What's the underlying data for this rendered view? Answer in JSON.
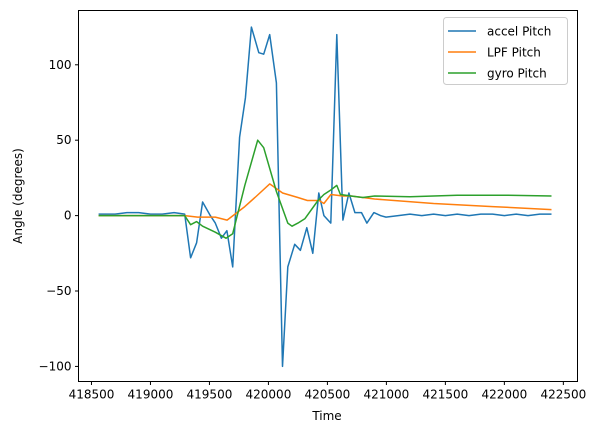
{
  "chart_data": {
    "type": "line",
    "title": "",
    "xlabel": "Time",
    "ylabel": "Angle (degrees)",
    "xlim": [
      418390,
      422620
    ],
    "ylim": [
      -110,
      136
    ],
    "xticks": [
      418500,
      419000,
      419500,
      420000,
      420500,
      421000,
      421500,
      422000,
      422500
    ],
    "yticks": [
      -100,
      -50,
      0,
      50,
      100
    ],
    "legend_position": "top-right",
    "grid": false,
    "series": [
      {
        "name": "accel Pitch",
        "color": "#1f77b4",
        "x": [
          418560,
          418700,
          418800,
          418900,
          419000,
          419100,
          419200,
          419290,
          419340,
          419391,
          419442,
          419507,
          419550,
          419601,
          419648,
          419697,
          419756,
          419805,
          419856,
          419918,
          419960,
          420011,
          420068,
          420119,
          420164,
          420223,
          420271,
          420325,
          420376,
          420427,
          420470,
          420529,
          420580,
          420631,
          420682,
          420733,
          420789,
          420835,
          420894,
          420950,
          420997,
          421100,
          421200,
          421300,
          421400,
          421500,
          421600,
          421700,
          421800,
          421900,
          422000,
          422100,
          422200,
          422300,
          422400
        ],
        "y": [
          1,
          1,
          2,
          2,
          1,
          1,
          2,
          1,
          -28,
          -18,
          9,
          0,
          -5,
          -15,
          -10,
          -34,
          52,
          78,
          125,
          108,
          107,
          120,
          88,
          -100,
          -34,
          -19,
          -23,
          -8,
          -25,
          15,
          0,
          -5,
          120,
          -3,
          15,
          2,
          2,
          -5,
          2,
          0,
          -1,
          0,
          1,
          0,
          1,
          0,
          1,
          0,
          1,
          1,
          0,
          1,
          0,
          1,
          1
        ]
      },
      {
        "name": "LPF Pitch",
        "color": "#ff7f0e",
        "x": [
          418560,
          419000,
          419290,
          419400,
          419550,
          419650,
          419700,
          419800,
          419900,
          420011,
          420120,
          420250,
          420330,
          420430,
          420470,
          420530,
          420630,
          420700,
          420900,
          421400,
          421900,
          422400
        ],
        "y": [
          0,
          0,
          0,
          -1,
          -1,
          -3,
          0,
          6,
          13,
          21,
          15,
          12,
          10,
          10,
          8,
          14,
          13,
          13,
          11,
          8,
          6,
          4
        ]
      },
      {
        "name": "gyro Pitch",
        "color": "#2ca02c",
        "x": [
          418560,
          419000,
          419290,
          419340,
          419391,
          419442,
          419550,
          419640,
          419697,
          419800,
          419909,
          419960,
          420068,
          420164,
          420200,
          420250,
          420310,
          420420,
          420470,
          420529,
          420580,
          420610,
          420700,
          420800,
          420900,
          421200,
          421600,
          422000,
          422400
        ],
        "y": [
          0,
          0,
          0,
          -6,
          -4,
          -7,
          -11,
          -15,
          -12,
          20,
          50,
          45,
          16,
          -5,
          -7,
          -5,
          -2,
          10,
          14,
          17,
          20,
          14,
          13,
          12,
          13,
          12.5,
          13.5,
          13.5,
          13
        ]
      }
    ]
  }
}
